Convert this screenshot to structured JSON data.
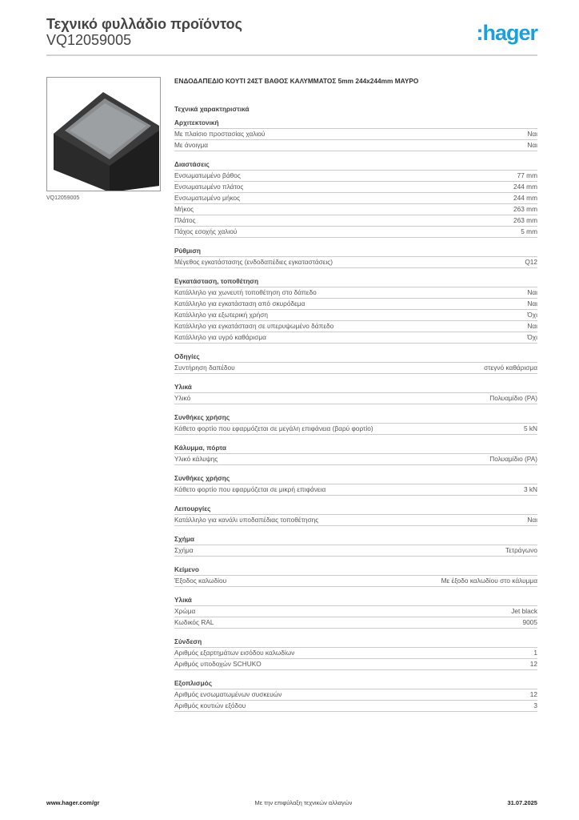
{
  "header": {
    "title": "Τεχνικό φυλλάδιο προϊόντος",
    "code": "VQ12059005",
    "logo": ":hager",
    "logo_color": "#1aa0dc"
  },
  "image": {
    "caption": "VQ12059005"
  },
  "product_title": "ΕΝΔΟΔΑΠΕΔΙΟ ΚΟΥΤΙ 24ΣΤ ΒΑΘΟΣ ΚΑΛΥΜΜΑΤΟΣ 5mm 244x244mm ΜΑΥΡΟ",
  "tech_heading": "Τεχνικά χαρακτηριστικά",
  "sections": [
    {
      "title": "Αρχιτεκτονική",
      "rows": [
        [
          "Με πλαίσιο προστασίας χαλιού",
          "Ναι"
        ],
        [
          "Με άνοιγμα",
          "Ναι"
        ]
      ]
    },
    {
      "title": "Διαστάσεις",
      "rows": [
        [
          "Ενσωματωμένο βάθος",
          "77 mm"
        ],
        [
          "Ενσωματωμένο πλάτος",
          "244 mm"
        ],
        [
          "Ενσωματωμένο μήκος",
          "244 mm"
        ],
        [
          "Μήκος",
          "263 mm"
        ],
        [
          "Πλάτος",
          "263 mm"
        ],
        [
          "Πάχος εσοχής χαλιού",
          "5 mm"
        ]
      ]
    },
    {
      "title": "Ρύθμιση",
      "rows": [
        [
          "Μέγεθος εγκατάστασης (ενδοδαπέδιες εγκαταστάσεις)",
          "Q12"
        ]
      ]
    },
    {
      "title": "Εγκατάσταση, τοποθέτηση",
      "rows": [
        [
          "Κατάλληλο για χωνευτή τοποθέτηση στο δάπεδο",
          "Ναι"
        ],
        [
          "Κατάλληλο για εγκατάσταση από σκυρόδεμα",
          "Ναι"
        ],
        [
          "Κατάλληλο για εξωτερική χρήση",
          "Όχι"
        ],
        [
          "Κατάλληλο για εγκατάσταση σε υπερυψωμένο δάπεδο",
          "Ναι"
        ],
        [
          "Κατάλληλο για υγρό καθάρισμα",
          "Όχι"
        ]
      ]
    },
    {
      "title": "Οδηγίες",
      "rows": [
        [
          "Συντήρηση δαπέδου",
          "στεγνό καθάρισμα"
        ]
      ]
    },
    {
      "title": "Υλικά",
      "rows": [
        [
          "Υλικό",
          "Πολυαμίδιο (PA)"
        ]
      ]
    },
    {
      "title": "Συνθήκες χρήσης",
      "rows": [
        [
          "Κάθετο φορτίο που εφαρμόζεται σε μεγάλη επιφάνεια (βαρύ φορτίο)",
          "5 kN"
        ]
      ]
    },
    {
      "title": "Κάλυμμα, πόρτα",
      "rows": [
        [
          "Υλικό κάλυψης",
          "Πολυαμίδιο (PA)"
        ]
      ]
    },
    {
      "title": "Συνθήκες χρήσης",
      "rows": [
        [
          "Κάθετο φορτίο που εφαρμόζεται σε μικρή επιφάνεια",
          "3 kN"
        ]
      ]
    },
    {
      "title": "Λειτουργίες",
      "rows": [
        [
          "Κατάλληλο για κανάλι υποδαπέδιας τοποθέτησης",
          "Ναι"
        ]
      ]
    },
    {
      "title": "Σχήμα",
      "rows": [
        [
          "Σχήμα",
          "Τετράγωνο"
        ]
      ]
    },
    {
      "title": "Κείμενο",
      "rows": [
        [
          "Έξοδος καλωδίου",
          "Με έξοδο καλωδίου στο κάλυμμα"
        ]
      ]
    },
    {
      "title": "Υλικά",
      "rows": [
        [
          "Χρώμα",
          "Jet black"
        ],
        [
          "Κωδικός RAL",
          "9005"
        ]
      ]
    },
    {
      "title": "Σύνδεση",
      "rows": [
        [
          "Αριθμός εξαρτημάτων εισόδου καλωδίων",
          "1"
        ],
        [
          "Αριθμός υποδοχών SCHUKO",
          "12"
        ]
      ]
    },
    {
      "title": "Εξοπλισμός",
      "rows": [
        [
          "Αριθμός ενσωματωμένων συσκευών",
          "12"
        ],
        [
          "Αριθμός κουτιών εξόδου",
          "3"
        ]
      ]
    }
  ],
  "footer": {
    "url": "www.hager.com/gr",
    "note": "Με την επιφύλαξη τεχνικών αλλαγών",
    "date": "31.07.2025"
  }
}
